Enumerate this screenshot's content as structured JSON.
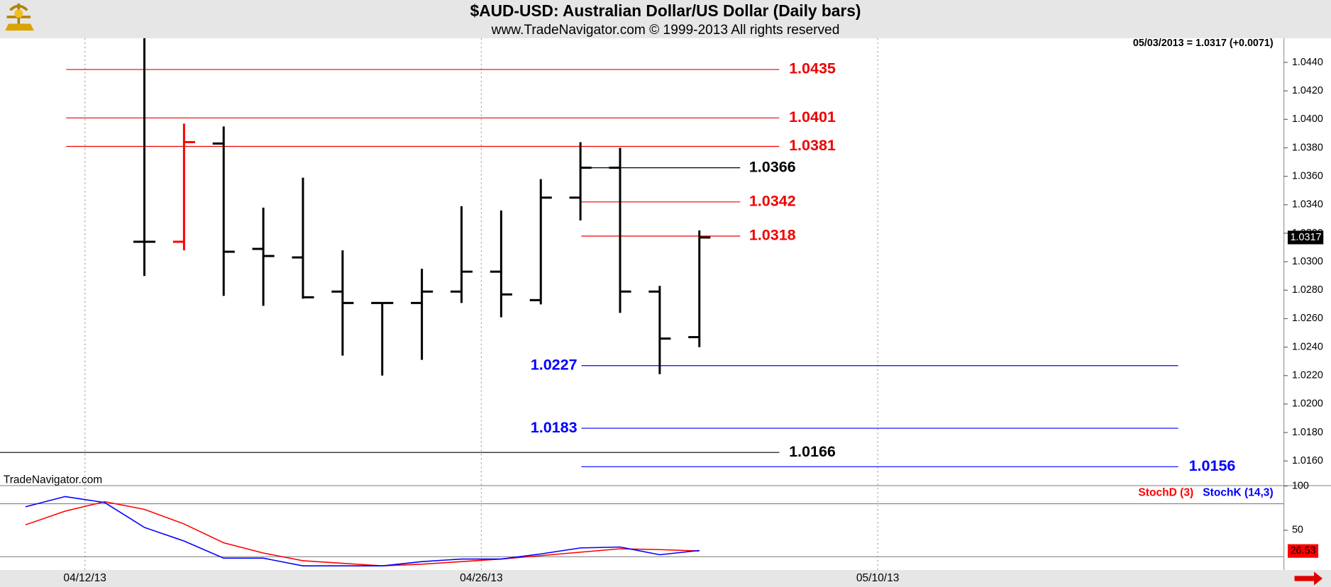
{
  "chart_data": [
    {
      "type": "ohlc",
      "title": "$AUD-USD:  Australian Dollar/US Dollar  (Daily bars)",
      "subtitle": "www.TradeNavigator.com © 1999-2013 All rights reserved",
      "status": "05/03/2013 = 1.0317 (+0.0071)",
      "categories": [
        null,
        null,
        "04/12/13",
        null,
        null,
        null,
        null,
        null,
        null,
        null,
        null,
        null,
        "04/26/13",
        null,
        null,
        null,
        null,
        null,
        null,
        null,
        null,
        null,
        "05/10/13"
      ],
      "open": [
        null,
        null,
        null,
        1.0314,
        1.0314,
        1.0383,
        1.0309,
        1.0303,
        1.0279,
        1.0271,
        1.0271,
        1.0279,
        1.0293,
        1.0273,
        1.0345,
        1.0366,
        1.0279,
        1.0247,
        null,
        null,
        null,
        null,
        null
      ],
      "high": [
        null,
        null,
        null,
        1.0457,
        1.0397,
        1.0395,
        1.0338,
        1.0359,
        1.0308,
        1.0271,
        1.0295,
        1.0339,
        1.0336,
        1.0358,
        1.0384,
        1.038,
        1.0283,
        1.0322,
        null,
        null,
        null,
        null,
        null
      ],
      "low": [
        null,
        null,
        null,
        1.029,
        1.0308,
        1.0276,
        1.0269,
        1.0274,
        1.0234,
        1.022,
        1.0231,
        1.0271,
        1.0261,
        1.027,
        1.0329,
        1.0264,
        1.0221,
        1.024,
        null,
        null,
        null,
        null,
        null
      ],
      "close": [
        null,
        null,
        null,
        1.0314,
        1.0384,
        1.0307,
        1.0304,
        1.0275,
        1.0271,
        1.0271,
        1.0279,
        1.0293,
        1.0277,
        1.0345,
        1.0366,
        1.0279,
        1.0246,
        1.0317,
        null,
        null,
        null,
        null,
        null
      ],
      "bar_colors": [
        null,
        null,
        null,
        "#000000",
        "#ff0000",
        "#000000",
        "#000000",
        "#000000",
        "#000000",
        "#000000",
        "#000000",
        "#000000",
        "#000000",
        "#000000",
        "#000000",
        "#000000",
        "#000000",
        "#000000",
        null,
        null,
        null,
        null,
        null
      ],
      "ylim": [
        1.0143,
        1.0457
      ],
      "yticks": [
        {
          "value": 1.016,
          "label": "1.0160"
        },
        {
          "value": 1.018,
          "label": "1.0180"
        },
        {
          "value": 1.02,
          "label": "1.0200"
        },
        {
          "value": 1.022,
          "label": "1.0220"
        },
        {
          "value": 1.024,
          "label": "1.0240"
        },
        {
          "value": 1.026,
          "label": "1.0260"
        },
        {
          "value": 1.028,
          "label": "1.0280"
        },
        {
          "value": 1.03,
          "label": "1.0300"
        },
        {
          "value": 1.032,
          "label": "1.0320"
        },
        {
          "value": 1.034,
          "label": "1.0340"
        },
        {
          "value": 1.036,
          "label": "1.0360"
        },
        {
          "value": 1.038,
          "label": "1.0380"
        },
        {
          "value": 1.04,
          "label": "1.0400"
        },
        {
          "value": 1.042,
          "label": "1.0420"
        },
        {
          "value": 1.044,
          "label": "1.0440"
        }
      ],
      "grid": true,
      "levels": [
        {
          "value": 1.0435,
          "color": "#ee0000"
        },
        {
          "value": 1.0401,
          "color": "#ee0000"
        },
        {
          "value": 1.0381,
          "color": "#ee0000"
        },
        {
          "value": 1.0366,
          "color": "#000000"
        },
        {
          "value": 1.0342,
          "color": "#ee0000"
        },
        {
          "value": 1.0318,
          "color": "#ee0000"
        },
        {
          "value": 1.0227,
          "color": "#0000ff"
        },
        {
          "value": 1.0183,
          "color": "#0000ff"
        },
        {
          "value": 1.0166,
          "color": "#000000"
        },
        {
          "value": 1.0156,
          "color": "#0000ff"
        }
      ]
    },
    {
      "type": "line",
      "source": "TradeNavigator.com",
      "series": [
        {
          "name": "StochD (3)",
          "color": "#ff0000",
          "values": [
            56.1,
            71.6,
            82.3,
            73.6,
            57.1,
            35.8,
            24.2,
            15.5,
            12.6,
            9.7,
            11.6,
            14.5,
            17.4,
            21.3,
            25.2,
            29.0,
            28.1,
            26.53,
            null,
            null,
            null,
            null,
            null
          ]
        },
        {
          "name": "StochK (14,3)",
          "color": "#0000ff",
          "values": [
            76.5,
            88.1,
            81.3,
            53.2,
            37.8,
            18.4,
            18.4,
            9.7,
            9.7,
            9.7,
            14.5,
            17.4,
            17.4,
            23.2,
            30.0,
            31.0,
            22.3,
            27.1,
            null,
            null,
            null,
            null,
            null
          ]
        }
      ],
      "ylim": [
        5,
        100
      ],
      "yticks": [
        50,
        100
      ],
      "guides": [
        80,
        20
      ]
    }
  ]
}
